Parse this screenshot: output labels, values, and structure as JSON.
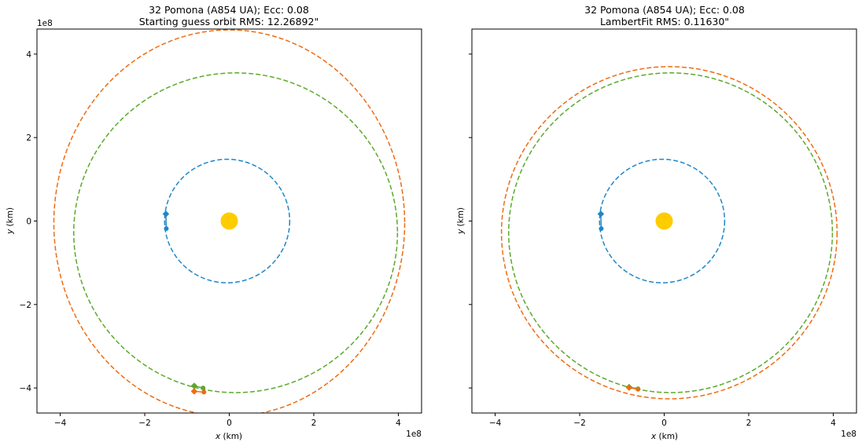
{
  "colors": {
    "earth": "#1f87c8",
    "asteroid_fit": "#ee6c12",
    "asteroid_true": "#5aaa2a",
    "sun": "#ffcc00",
    "axes": "#000000"
  },
  "chart_data": [
    {
      "type": "scatter",
      "title_line1": "32 Pomona (A854 UA); Ecc: 0.08",
      "title_line2": "Starting guess orbit RMS: 12.26892\"",
      "xlabel_var": "x",
      "xlabel_unit": " (km)",
      "ylabel_var": "y",
      "ylabel_unit": " (km)",
      "scale_label": "1e8",
      "xlim": [
        -4.55,
        4.55
      ],
      "ylim": [
        -4.6,
        4.6
      ],
      "xticks": [
        -4,
        -2,
        0,
        2,
        4
      ],
      "yticks": [
        -4,
        -2,
        0,
        2,
        4
      ],
      "xtick_labels": [
        "−4",
        "−2",
        "0",
        "2",
        "4"
      ],
      "ytick_labels": [
        "−4",
        "−2",
        "0",
        "2",
        "4"
      ],
      "show_yticklabels": true,
      "sun": {
        "x": 0,
        "y": 0
      },
      "orbits": [
        {
          "role": "earth",
          "cx": -0.05,
          "cy": 0,
          "rx": 1.48,
          "ry": 1.48
        },
        {
          "role": "asteroid_true",
          "cx": 0.15,
          "cy": -0.28,
          "rx": 3.83,
          "ry": 3.83
        },
        {
          "role": "asteroid_fit",
          "cx": 0.0,
          "cy": -0.05,
          "rx": 4.15,
          "ry": 4.63
        }
      ],
      "points": [
        {
          "role": "earth",
          "marker": "diamond",
          "x": -1.5,
          "y": 0.17
        },
        {
          "role": "earth",
          "marker": "circle",
          "x": -1.49,
          "y": -0.18
        },
        {
          "role": "asteroid_true",
          "marker": "diamond",
          "x": -0.83,
          "y": -3.95
        },
        {
          "role": "asteroid_true",
          "marker": "circle",
          "x": -0.62,
          "y": -4.0
        },
        {
          "role": "asteroid_fit",
          "marker": "diamond",
          "x": -0.83,
          "y": -4.08
        },
        {
          "role": "asteroid_fit",
          "marker": "circle",
          "x": -0.6,
          "y": -4.1
        }
      ]
    },
    {
      "type": "scatter",
      "title_line1": "32 Pomona (A854 UA); Ecc: 0.08",
      "title_line2": "LambertFit RMS: 0.11630\"",
      "xlabel_var": "x",
      "xlabel_unit": " (km)",
      "ylabel_var": "y",
      "ylabel_unit": " (km)",
      "scale_label": "1e8",
      "xlim": [
        -4.55,
        4.55
      ],
      "ylim": [
        -4.6,
        4.6
      ],
      "xticks": [
        -4,
        -2,
        0,
        2,
        4
      ],
      "yticks": [
        -4,
        -2,
        0,
        2,
        4
      ],
      "xtick_labels": [
        "−4",
        "−2",
        "0",
        "2",
        "4"
      ],
      "ytick_labels": [
        "",
        "",
        "",
        "",
        ""
      ],
      "show_yticklabels": false,
      "sun": {
        "x": 0,
        "y": 0
      },
      "orbits": [
        {
          "role": "earth",
          "cx": -0.05,
          "cy": 0,
          "rx": 1.48,
          "ry": 1.48
        },
        {
          "role": "asteroid_true",
          "cx": 0.15,
          "cy": -0.28,
          "rx": 3.83,
          "ry": 3.83
        },
        {
          "role": "asteroid_fit",
          "cx": 0.12,
          "cy": -0.28,
          "rx": 3.97,
          "ry": 3.98
        }
      ],
      "points": [
        {
          "role": "earth",
          "marker": "diamond",
          "x": -1.5,
          "y": 0.17
        },
        {
          "role": "earth",
          "marker": "circle",
          "x": -1.49,
          "y": -0.18
        },
        {
          "role": "asteroid_true",
          "marker": "diamond",
          "x": -0.83,
          "y": -3.98
        },
        {
          "role": "asteroid_true",
          "marker": "circle",
          "x": -0.62,
          "y": -4.02
        },
        {
          "role": "asteroid_fit",
          "marker": "diamond",
          "x": -0.83,
          "y": -3.99
        },
        {
          "role": "asteroid_fit",
          "marker": "circle",
          "x": -0.62,
          "y": -4.03
        }
      ]
    }
  ]
}
